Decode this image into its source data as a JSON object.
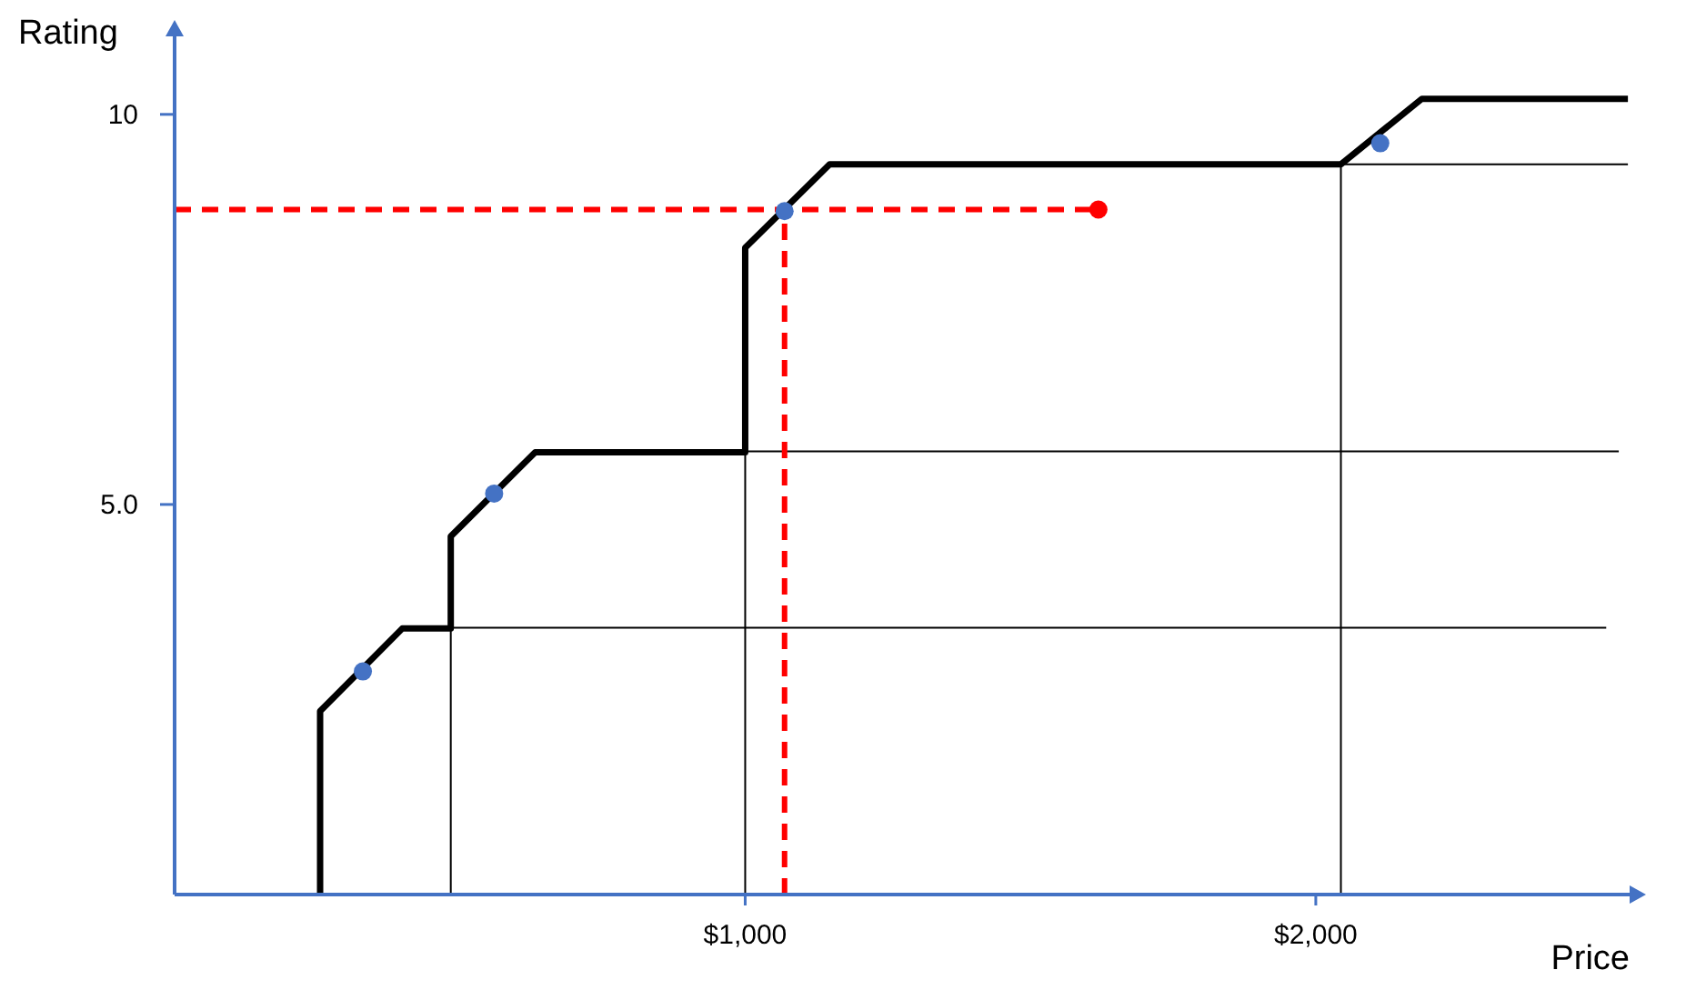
{
  "chart_data": {
    "type": "line",
    "xlabel": "Price",
    "ylabel": "Rating",
    "xlim": [
      0,
      2550
    ],
    "ylim": [
      0,
      11
    ],
    "xticks": [
      {
        "value": 1000,
        "label": "$1,000"
      },
      {
        "value": 2000,
        "label": "$2,000"
      }
    ],
    "yticks": [
      {
        "value": 5,
        "label": "5.0"
      },
      10
    ],
    "grid": false,
    "series": [
      {
        "color": "#000000",
        "line_style": "solid",
        "x": [
          255,
          255,
          399,
          484,
          484,
          632,
          1000,
          1000,
          1148,
          2044,
          2186,
          2547
        ],
        "values": [
          0,
          2.35,
          3.41,
          3.41,
          4.59,
          5.67,
          5.67,
          8.29,
          9.36,
          9.36,
          10.2,
          10.2
        ]
      },
      {
        "color": "#000000",
        "line_style": "solid",
        "x": [
          484,
          484,
          2509
        ],
        "values": [
          0,
          3.42,
          3.42
        ]
      },
      {
        "color": "#000000",
        "line_style": "solid",
        "x": [
          1000,
          1000,
          2531
        ],
        "values": [
          0,
          5.68,
          5.68
        ]
      },
      {
        "color": "#000000",
        "line_style": "solid",
        "x": [
          2044,
          2044,
          2547
        ],
        "values": [
          0,
          9.36,
          9.36
        ]
      },
      {
        "color": "#ff0000",
        "line_style": "dashed",
        "x": [
          0,
          1619
        ],
        "values": [
          8.78,
          8.78
        ]
      },
      {
        "color": "#ff0000",
        "line_style": "dashed",
        "x": [
          1069,
          1069
        ],
        "values": [
          0,
          8.78
        ]
      },
      {
        "type": "scatter",
        "color": "#4472c4",
        "marker": "circle",
        "x": [
          330,
          560,
          1069,
          2113
        ],
        "values": [
          2.86,
          5.14,
          8.76,
          9.63
        ]
      },
      {
        "type": "scatter",
        "color": "#ff0000",
        "marker": "circle",
        "x": [
          1619
        ],
        "values": [
          8.78
        ]
      }
    ]
  }
}
